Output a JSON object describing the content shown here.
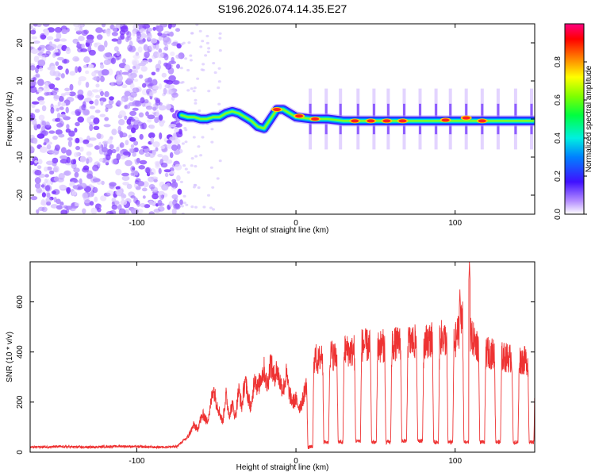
{
  "title": "S196.2026.074.14.35.E27",
  "chart_data": [
    {
      "type": "heatmap",
      "name": "spectrogram",
      "xlabel": "Height of straight line (km)",
      "ylabel": "Frequency (Hz)",
      "xlim": [
        -167,
        150
      ],
      "ylim": [
        -25,
        25
      ],
      "xticks": [
        -100,
        0,
        100
      ],
      "yticks": [
        -20,
        -10,
        0,
        10,
        20
      ],
      "colorbar": {
        "label": "Normalized spectral amplitude",
        "range": [
          0,
          1
        ],
        "ticks": [
          "0.0",
          "0.2",
          "0.4",
          "0.6",
          "0.8"
        ],
        "tick_values": [
          0.0,
          0.2,
          0.4,
          0.6,
          0.8
        ]
      },
      "noise_region_x": [
        -167,
        -72
      ],
      "ridge": {
        "x": [
          -72,
          -68,
          -64,
          -60,
          -56,
          -52,
          -48,
          -44,
          -40,
          -36,
          -32,
          -28,
          -24,
          -20,
          -16,
          -12,
          -8,
          -4,
          0,
          10,
          20,
          30,
          40,
          50,
          60,
          70,
          80,
          90,
          100,
          110,
          120,
          130,
          140,
          149
        ],
        "freq_hz": [
          1,
          0.5,
          0.5,
          0,
          0,
          0.5,
          0.5,
          1.5,
          2,
          1.5,
          0.5,
          -0.5,
          -2,
          -2.5,
          0,
          2.5,
          2.5,
          1.5,
          0.5,
          0,
          0,
          -0.5,
          -0.5,
          -0.5,
          -0.5,
          -0.5,
          -0.5,
          -0.5,
          -0.5,
          -0.5,
          -0.5,
          -0.5,
          -0.5,
          -0.5
        ]
      },
      "peak_markers": [
        {
          "x": -12,
          "freq_hz": 2.5
        },
        {
          "x": 2,
          "freq_hz": 0.8
        },
        {
          "x": 12,
          "freq_hz": 0
        },
        {
          "x": 37,
          "freq_hz": -0.5
        },
        {
          "x": 47,
          "freq_hz": -0.5
        },
        {
          "x": 57,
          "freq_hz": -0.5
        },
        {
          "x": 67,
          "freq_hz": -0.5
        },
        {
          "x": 94,
          "freq_hz": -0.3
        },
        {
          "x": 107,
          "freq_hz": 0.3
        },
        {
          "x": 117,
          "freq_hz": -0.5
        }
      ]
    },
    {
      "type": "line",
      "name": "snr",
      "xlabel": "Height of straight line (km)",
      "ylabel": "SNR (10 * v/v)",
      "xlim": [
        -167,
        150
      ],
      "ylim": [
        0,
        760
      ],
      "xticks": [
        -100,
        0,
        100
      ],
      "yticks": [
        0,
        200,
        400,
        600
      ],
      "series": [
        {
          "name": "SNR",
          "color": "#ee3333",
          "x": [
            -167,
            -150,
            -130,
            -110,
            -90,
            -75,
            -68,
            -64,
            -62,
            -60,
            -58,
            -56,
            -54,
            -52,
            -50,
            -48,
            -46,
            -44,
            -42,
            -40,
            -38,
            -36,
            -34,
            -32,
            -30,
            -28,
            -26,
            -24,
            -22,
            -20,
            -18,
            -16,
            -14,
            -12,
            -10,
            -8,
            -6,
            -4,
            -2,
            0,
            2,
            4,
            6,
            8,
            10,
            12,
            14,
            16,
            18,
            20,
            25,
            30,
            35,
            40,
            50,
            60,
            70,
            80,
            90,
            100,
            104,
            106,
            108,
            110,
            115,
            120,
            130,
            140,
            149
          ],
          "y": [
            20,
            22,
            20,
            24,
            20,
            22,
            60,
            110,
            90,
            130,
            150,
            120,
            170,
            260,
            200,
            160,
            120,
            230,
            150,
            190,
            140,
            250,
            180,
            290,
            220,
            170,
            310,
            250,
            300,
            330,
            260,
            360,
            300,
            330,
            280,
            250,
            310,
            230,
            200,
            210,
            180,
            200,
            260,
            300,
            350,
            380,
            360,
            390,
            410,
            400,
            380,
            410,
            400,
            430,
            420,
            430,
            440,
            440,
            460,
            440,
            520,
            640,
            500,
            460,
            420,
            400,
            380,
            370,
            360
          ]
        }
      ],
      "dropouts": [
        {
          "x": 9,
          "value": 20
        },
        {
          "x": 19,
          "value": 40
        },
        {
          "x": 28,
          "value": 40
        },
        {
          "x": 39,
          "value": 45
        },
        {
          "x": 49,
          "value": 40
        },
        {
          "x": 58,
          "value": 40
        },
        {
          "x": 68,
          "value": 45
        },
        {
          "x": 78,
          "value": 45
        },
        {
          "x": 88,
          "value": 40
        },
        {
          "x": 97,
          "value": 40
        },
        {
          "x": 107,
          "value": 40
        },
        {
          "x": 117,
          "value": 40
        },
        {
          "x": 127,
          "value": 40
        },
        {
          "x": 138,
          "value": 40
        },
        {
          "x": 148,
          "value": 40
        }
      ],
      "spikes": [
        {
          "x": 103,
          "value": 650
        },
        {
          "x": 109,
          "value": 760
        }
      ]
    }
  ]
}
